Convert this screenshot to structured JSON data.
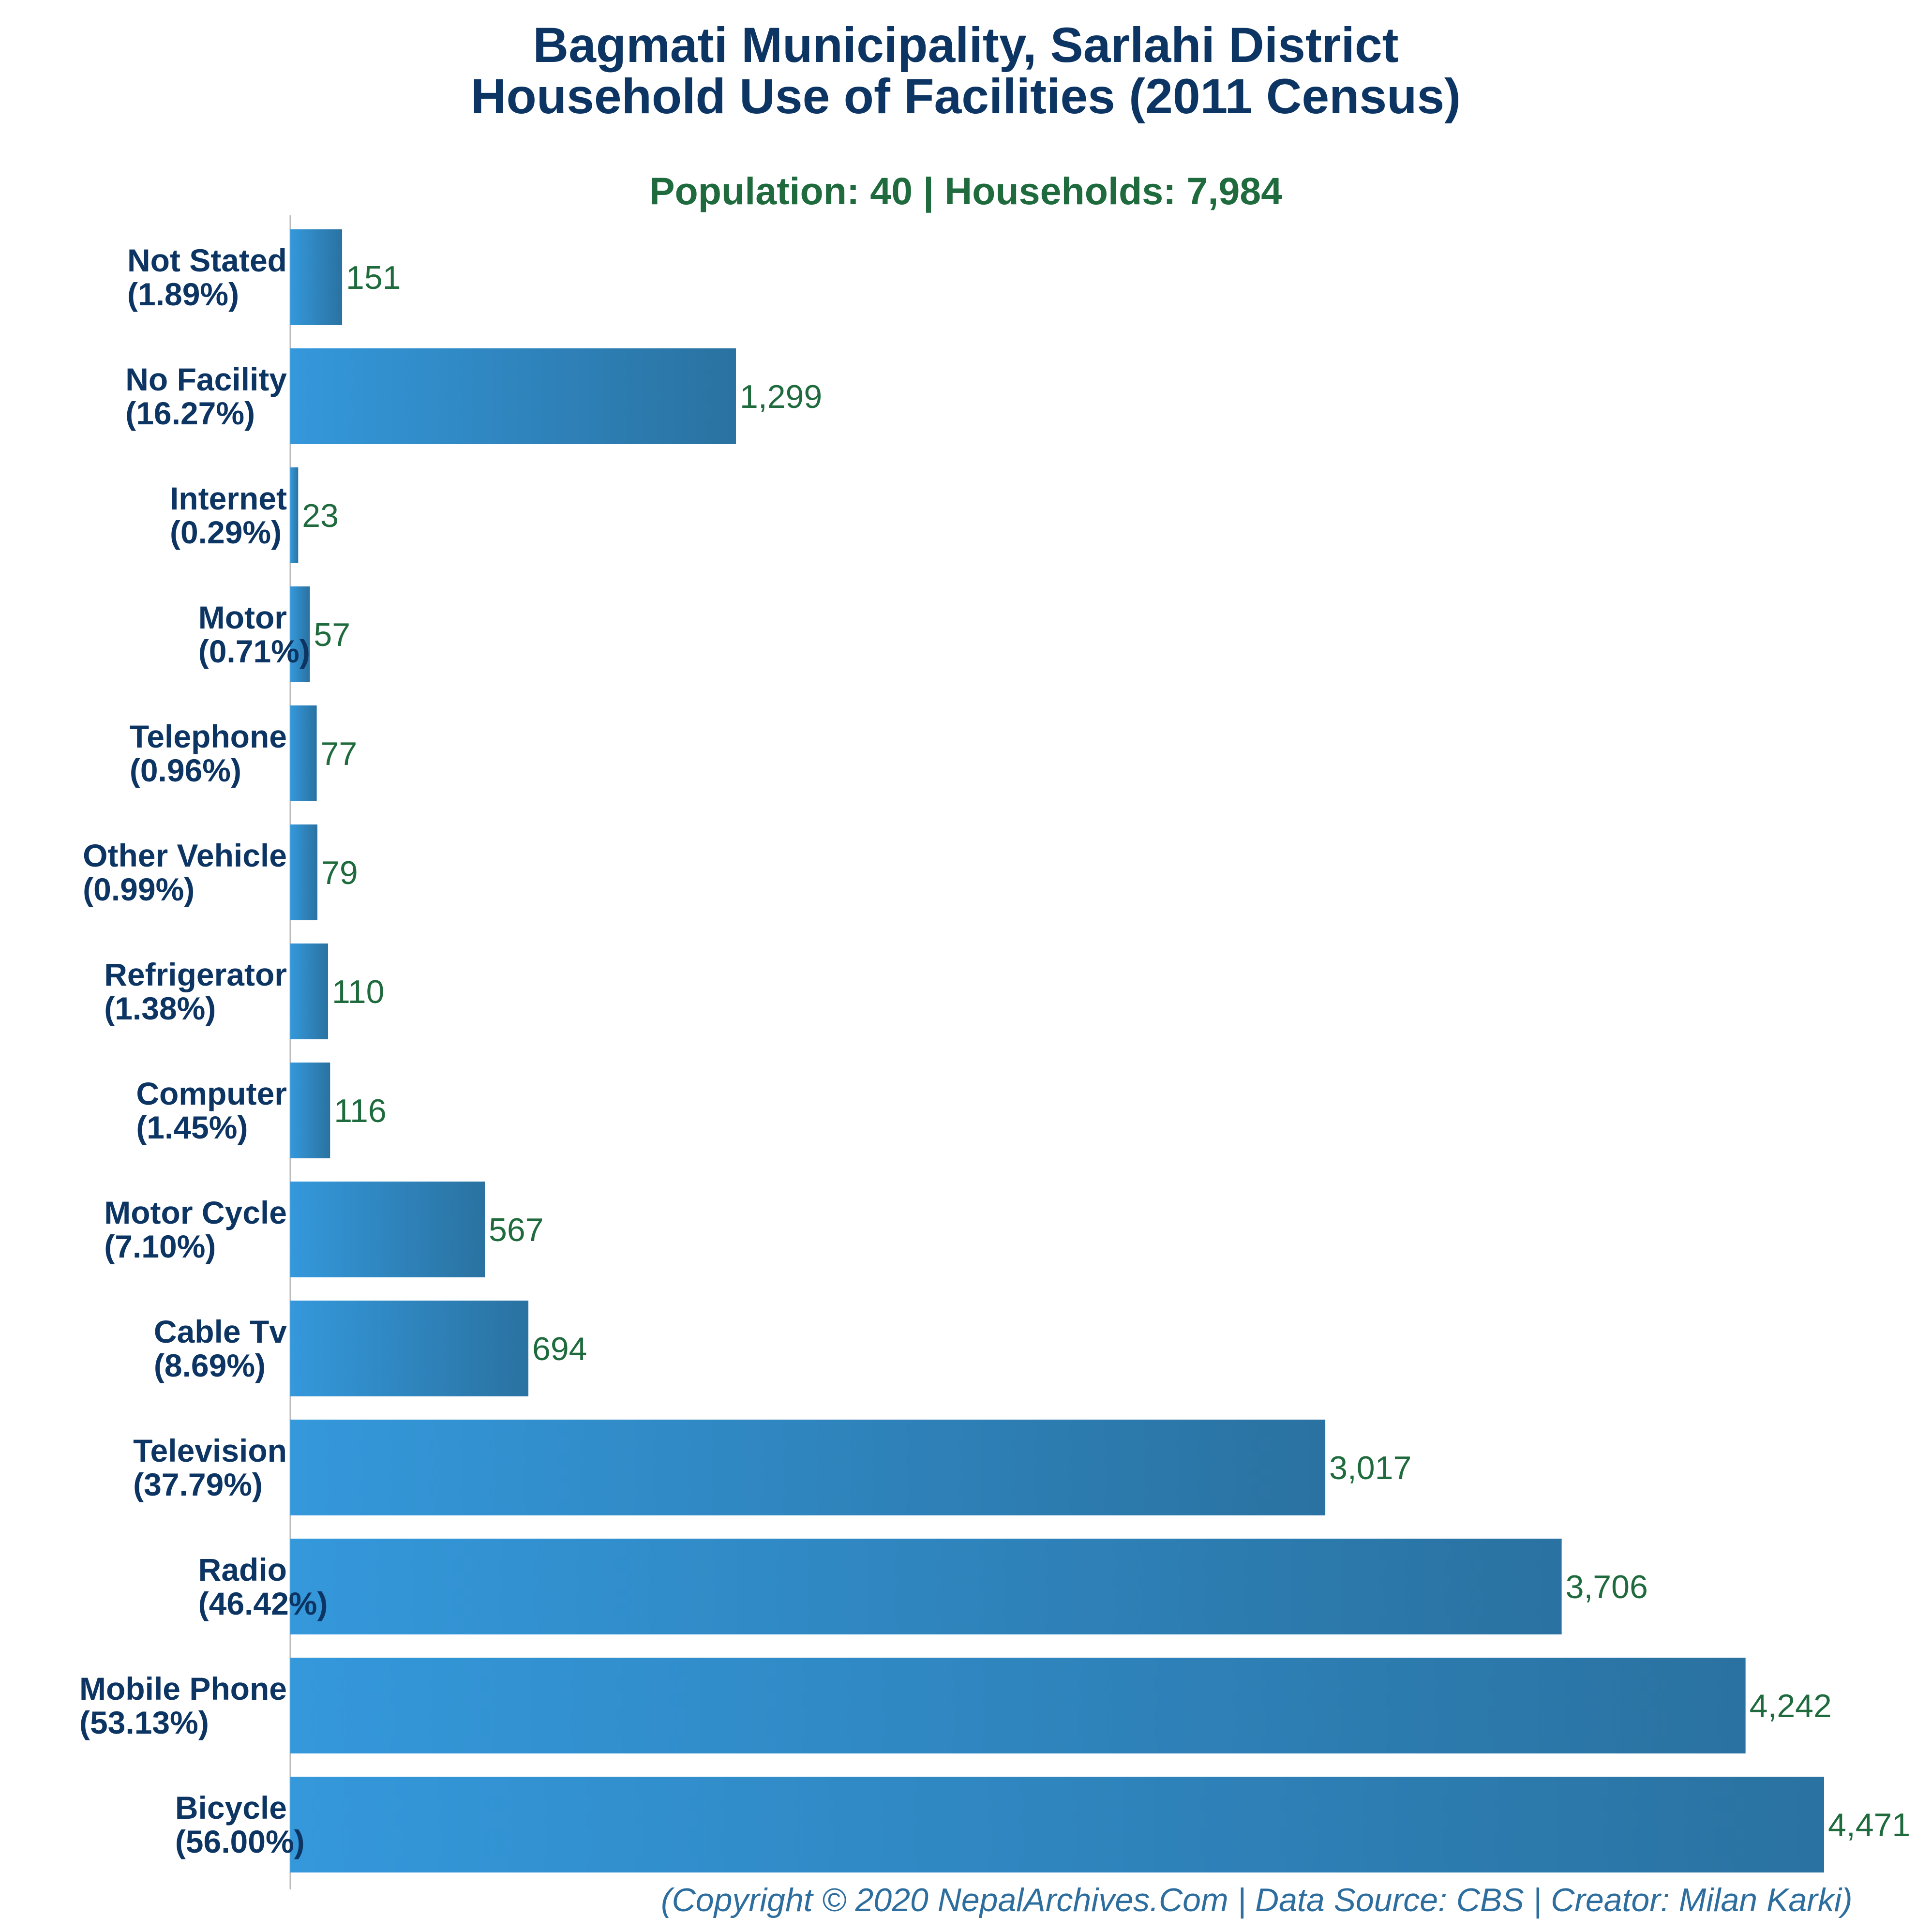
{
  "chart_data": {
    "type": "bar",
    "orientation": "horizontal",
    "title": [
      "Bagmati Municipality, Sarlahi District",
      "Household Use of Facilities (2011 Census)"
    ],
    "subtitle": "Population: 40 | Households: 7,984",
    "categories": [
      {
        "name": "Not Stated",
        "pct": "(1.89%)"
      },
      {
        "name": "No Facility",
        "pct": "(16.27%)"
      },
      {
        "name": "Internet",
        "pct": "(0.29%)"
      },
      {
        "name": "Motor",
        "pct": "(0.71%)"
      },
      {
        "name": "Telephone",
        "pct": "(0.96%)"
      },
      {
        "name": "Other Vehicle",
        "pct": "(0.99%)"
      },
      {
        "name": "Refrigerator",
        "pct": "(1.38%)"
      },
      {
        "name": "Computer",
        "pct": "(1.45%)"
      },
      {
        "name": "Motor Cycle",
        "pct": "(7.10%)"
      },
      {
        "name": "Cable Tv",
        "pct": "(8.69%)"
      },
      {
        "name": "Television",
        "pct": "(37.79%)"
      },
      {
        "name": "Radio",
        "pct": "(46.42%)"
      },
      {
        "name": "Mobile Phone",
        "pct": "(53.13%)"
      },
      {
        "name": "Bicycle",
        "pct": "(56.00%)"
      }
    ],
    "values": [
      151,
      1299,
      23,
      57,
      77,
      79,
      110,
      116,
      567,
      694,
      3017,
      3706,
      4242,
      4471
    ],
    "value_labels": [
      "151",
      "1,299",
      "23",
      "57",
      "77",
      "79",
      "110",
      "116",
      "567",
      "694",
      "3,017",
      "3,706",
      "4,242",
      "4,471"
    ],
    "xlim": [
      0,
      4471
    ],
    "grid": false,
    "legend": "none",
    "colors": {
      "bar_light": "#3498db",
      "bar_dark": "#2a72a1",
      "title": "#0d3563",
      "subtitle": "#1f6b3d",
      "value_label": "#1f6b3d",
      "footer": "#2e6e9e",
      "axis": "#bbbbbb"
    }
  },
  "footer": "(Copyright © 2020 NepalArchives.Com | Data Source: CBS | Creator: Milan Karki)"
}
